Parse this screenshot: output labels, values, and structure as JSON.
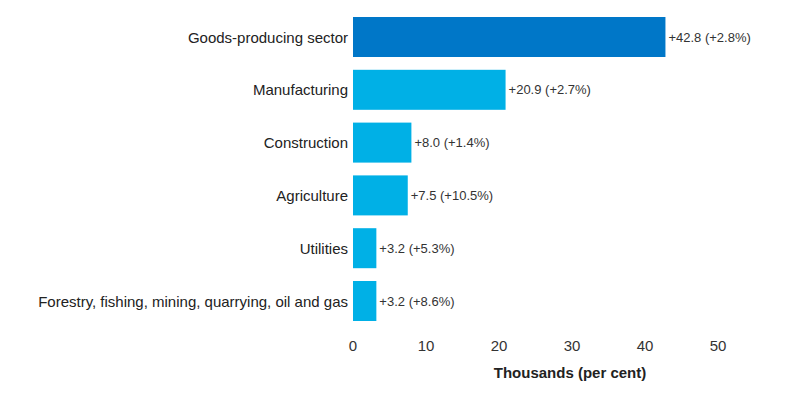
{
  "chart_data": {
    "type": "bar",
    "orientation": "horizontal",
    "categories": [
      "Goods-producing sector",
      "Manufacturing",
      "Construction",
      "Agriculture",
      "Utilities",
      "Forestry, fishing, mining, quarrying, oil and gas"
    ],
    "values": [
      42.8,
      20.9,
      8.0,
      7.5,
      3.2,
      3.2
    ],
    "value_labels": [
      "+42.8 (+2.8%)",
      "+20.9 (+2.7%)",
      "+8.0 (+1.4%)",
      "+7.5 (+10.5%)",
      "+3.2 (+5.3%)",
      "+3.2 (+8.6%)"
    ],
    "colors": [
      "#0077c8",
      "#00b0e6",
      "#00b0e6",
      "#00b0e6",
      "#00b0e6",
      "#00b0e6"
    ],
    "xlabel": "Thousands (per cent)",
    "xlim": [
      0,
      50
    ],
    "xticks": [
      0,
      10,
      20,
      30,
      40,
      50
    ],
    "grid": false,
    "data_labels": true
  }
}
